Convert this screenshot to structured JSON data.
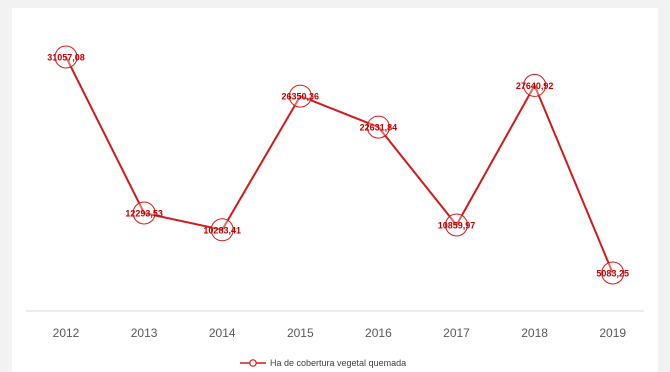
{
  "chart_data": {
    "type": "line",
    "categories": [
      "2012",
      "2013",
      "2014",
      "2015",
      "2016",
      "2017",
      "2018",
      "2019"
    ],
    "series": [
      {
        "name": "Ha de cobertura vegetal quemada",
        "values": [
          31057.08,
          12293.53,
          10283.41,
          26350.36,
          22631.84,
          10859.97,
          27640.92,
          5083.25
        ],
        "labels": [
          "31057,08",
          "12293,53",
          "10283,41",
          "26350,36",
          "22631,84",
          "10859,97",
          "27640,92",
          "5083,25"
        ]
      }
    ],
    "title": "",
    "xlabel": "",
    "ylabel": "",
    "ylim": [
      0,
      33000
    ],
    "grid": false,
    "legend_position": "bottom",
    "colors": {
      "line": "#d11b1b",
      "marker_fill": "#ffffff",
      "label": "#c00000",
      "axis": "#d9d9d9",
      "tick_text": "#595959"
    }
  }
}
